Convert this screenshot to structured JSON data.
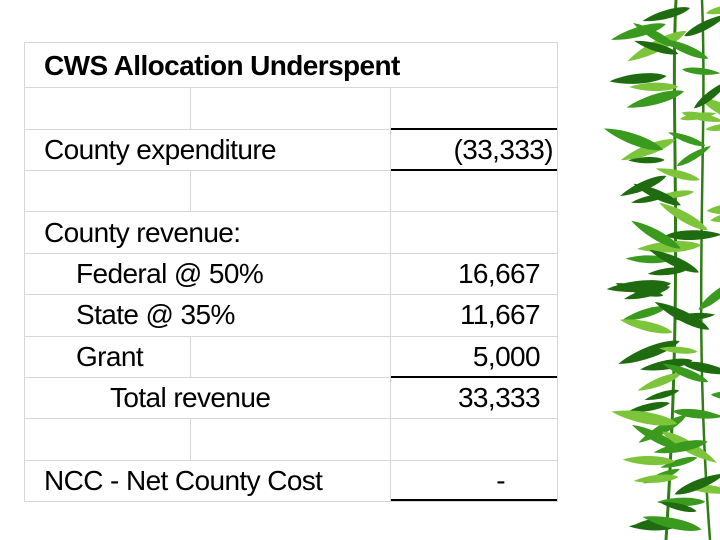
{
  "table": {
    "title": "CWS Allocation Underspent",
    "rows": [
      {
        "label": "County expenditure",
        "value": "(33,333)"
      },
      {
        "label": "County revenue:",
        "value": ""
      },
      {
        "label": "Federal @ 50%",
        "value": "16,667"
      },
      {
        "label": "State @ 35%",
        "value": "11,667"
      },
      {
        "label": "Grant",
        "value": "5,000"
      },
      {
        "label": "Total revenue",
        "value": "33,333"
      },
      {
        "label": "NCC - Net County Cost",
        "value": "-"
      }
    ]
  },
  "colors": {
    "gridline": "#d6d6d6",
    "text": "#000000",
    "bamboo_leaf": "#3a9a1e",
    "bamboo_leaf_dark": "#1f6b0f",
    "bamboo_leaf_light": "#7cc43a"
  },
  "decoration": {
    "right_edge_icon": "bamboo-leaves-icon"
  }
}
